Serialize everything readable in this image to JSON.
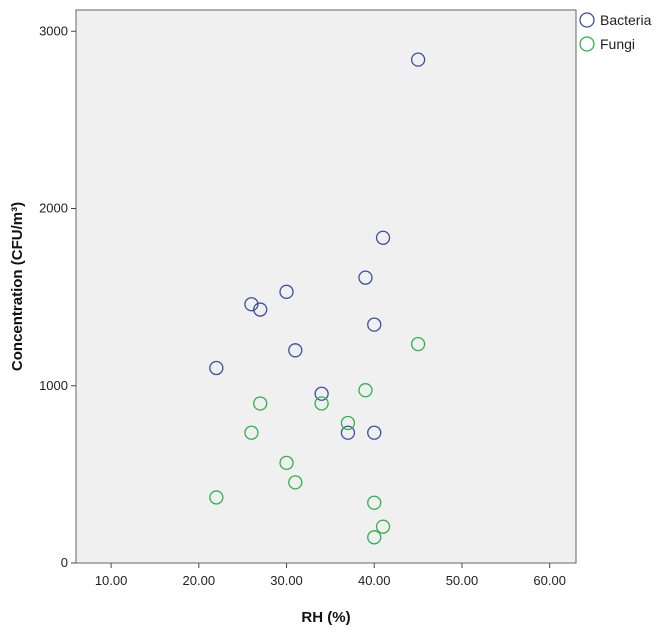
{
  "chart_data": {
    "type": "scatter",
    "xlabel": "RH (%)",
    "ylabel": "Concentration (CFU/m³)",
    "xlim": [
      6,
      63
    ],
    "ylim": [
      0,
      3120
    ],
    "x_ticks": [
      10,
      20,
      30,
      40,
      50,
      60
    ],
    "x_tick_labels": [
      "10.00",
      "20.00",
      "30.00",
      "40.00",
      "50.00",
      "60.00"
    ],
    "y_ticks": [
      0,
      1000,
      2000,
      3000
    ],
    "y_tick_labels": [
      "0",
      "1000",
      "2000",
      "3000"
    ],
    "grid": false,
    "plot_background": "#f0f0f0",
    "legend_position": "top-right-outside",
    "series": [
      {
        "name": "Bacteria",
        "color": "#3a4fa0",
        "marker": "open-circle",
        "points": [
          {
            "x": 22,
            "y": 1100
          },
          {
            "x": 26,
            "y": 1460
          },
          {
            "x": 27,
            "y": 1430
          },
          {
            "x": 30,
            "y": 1530
          },
          {
            "x": 31,
            "y": 1200
          },
          {
            "x": 34,
            "y": 955
          },
          {
            "x": 37,
            "y": 735
          },
          {
            "x": 39,
            "y": 1610
          },
          {
            "x": 40,
            "y": 1345
          },
          {
            "x": 40,
            "y": 735
          },
          {
            "x": 41,
            "y": 1835
          },
          {
            "x": 45,
            "y": 2840
          }
        ]
      },
      {
        "name": "Fungi",
        "color": "#2db34a",
        "marker": "open-circle",
        "points": [
          {
            "x": 22,
            "y": 370
          },
          {
            "x": 26,
            "y": 735
          },
          {
            "x": 27,
            "y": 900
          },
          {
            "x": 30,
            "y": 565
          },
          {
            "x": 31,
            "y": 455
          },
          {
            "x": 34,
            "y": 900
          },
          {
            "x": 37,
            "y": 790
          },
          {
            "x": 39,
            "y": 975
          },
          {
            "x": 40,
            "y": 340
          },
          {
            "x": 40,
            "y": 145
          },
          {
            "x": 41,
            "y": 205
          },
          {
            "x": 45,
            "y": 1235
          }
        ]
      }
    ]
  }
}
